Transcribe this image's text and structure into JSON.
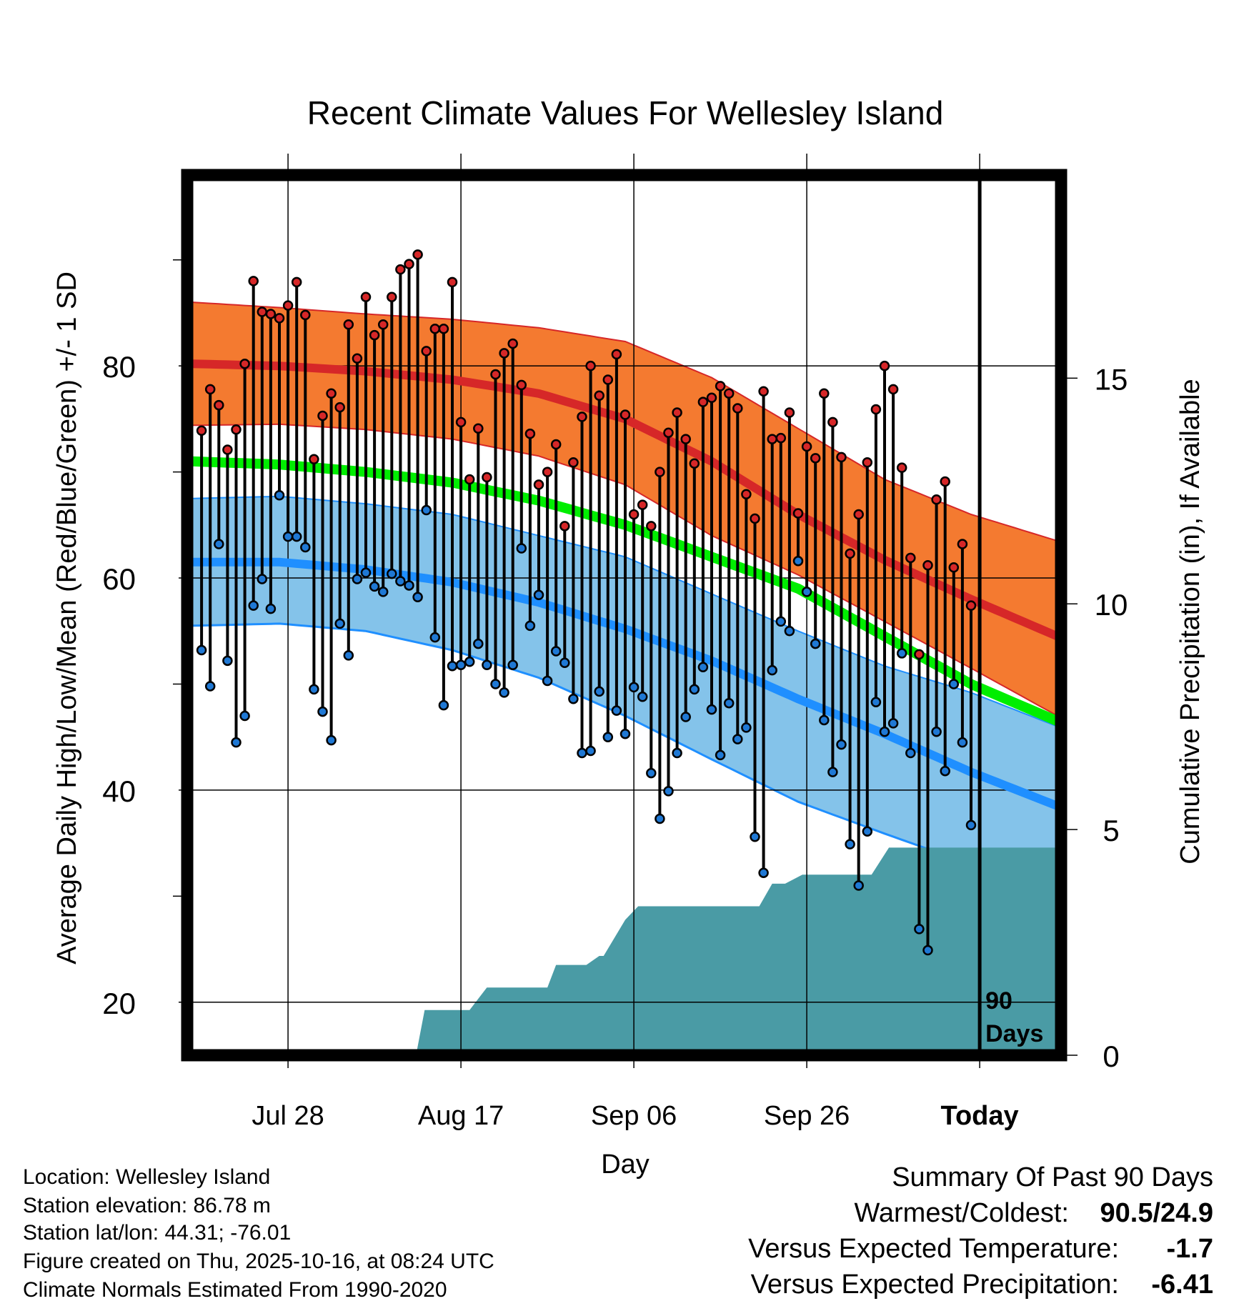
{
  "chart_data": {
    "type": "line",
    "title": "Recent Climate Values For Wellesley Island",
    "xlabel": "Day",
    "ylabel_left": "Average Daily High/Low/Mean (Red/Blue/Green) +/- 1 SD",
    "ylabel_right": "Cumulative Precipitation (in), If Available",
    "x_tick_labels": [
      "Jul 28",
      "Aug 17",
      "Sep 06",
      "Sep 26",
      "Today"
    ],
    "x_tick_days": [
      11,
      31,
      51,
      71,
      91
    ],
    "xlim": [
      0,
      100
    ],
    "ylim_temp": [
      15,
      98
    ],
    "y_ticks_temp": [
      20,
      40,
      60,
      80
    ],
    "ylim_precip": [
      0,
      19.5
    ],
    "y_ticks_precip": [
      0,
      5,
      10,
      15
    ],
    "days_label": "90 Days",
    "normals": {
      "days": [
        0,
        10,
        20,
        30,
        40,
        50,
        60,
        70,
        80,
        90,
        100
      ],
      "high_mean": [
        80.2,
        80.0,
        79.5,
        78.7,
        77.4,
        75.0,
        71.0,
        66.0,
        61.7,
        58.0,
        54.5
      ],
      "high_upper": [
        86.0,
        85.5,
        84.9,
        84.4,
        83.6,
        82.3,
        78.9,
        74.1,
        69.3,
        66.0,
        63.5
      ],
      "high_lower": [
        74.4,
        74.5,
        74.0,
        73.1,
        71.5,
        68.8,
        64.0,
        60.3,
        55.9,
        51.5,
        47.0
      ],
      "mean_temp": [
        71.0,
        70.7,
        70.0,
        69.0,
        67.3,
        65.0,
        62.0,
        59.0,
        54.5,
        50.0,
        46.5
      ],
      "low_mean": [
        61.5,
        61.5,
        60.8,
        59.6,
        57.7,
        55.2,
        52.2,
        48.6,
        45.3,
        41.7,
        38.5
      ],
      "low_upper": [
        67.5,
        67.7,
        67.0,
        66.0,
        64.0,
        62.0,
        58.5,
        55.0,
        51.7,
        49.2,
        46.0
      ],
      "low_lower": [
        55.5,
        55.7,
        55.0,
        53.2,
        50.6,
        47.0,
        42.9,
        38.9,
        35.9,
        33.0,
        30.5
      ]
    },
    "series": [
      {
        "name": "Daily High",
        "color": "#d62728",
        "values": [
          73.9,
          77.8,
          76.3,
          72.1,
          74.0,
          80.2,
          88.0,
          85.1,
          84.9,
          84.5,
          85.7,
          87.9,
          84.8,
          71.2,
          75.3,
          77.4,
          76.1,
          83.9,
          80.7,
          86.5,
          82.9,
          83.9,
          86.5,
          89.1,
          89.6,
          90.5,
          81.4,
          83.5,
          83.5,
          87.9,
          74.7,
          69.3,
          74.1,
          69.5,
          79.2,
          81.2,
          82.1,
          78.2,
          73.6,
          68.8,
          70.0,
          72.6,
          64.9,
          70.9,
          75.2,
          80.0,
          77.2,
          78.7,
          81.1,
          75.4,
          66.0,
          66.9,
          64.9,
          70.0,
          73.7,
          75.6,
          73.1,
          70.8,
          76.6,
          77.0,
          78.1,
          77.4,
          76.0,
          67.9,
          65.6,
          77.6,
          73.1,
          73.2,
          75.6,
          66.1,
          72.4,
          71.3,
          77.4,
          74.7,
          71.4,
          62.3,
          66.0,
          70.9,
          75.9,
          80.0,
          77.8,
          70.4,
          61.9,
          52.8,
          61.2,
          67.4,
          69.1,
          61.0,
          63.2,
          57.4
        ]
      },
      {
        "name": "Daily Low",
        "color": "#1f78d4",
        "values": [
          53.2,
          49.8,
          63.2,
          52.2,
          44.5,
          47.0,
          57.4,
          59.9,
          57.1,
          67.8,
          63.9,
          63.9,
          62.9,
          49.5,
          47.4,
          44.7,
          55.7,
          52.7,
          59.9,
          60.5,
          59.2,
          58.7,
          60.4,
          59.7,
          59.3,
          58.2,
          66.4,
          54.4,
          48.0,
          51.7,
          51.8,
          52.1,
          53.8,
          51.8,
          50.0,
          49.2,
          51.8,
          62.8,
          55.5,
          58.4,
          50.3,
          53.1,
          52.0,
          48.6,
          43.5,
          43.7,
          49.3,
          45.0,
          47.5,
          45.3,
          49.7,
          48.8,
          41.6,
          37.3,
          39.9,
          43.5,
          46.9,
          49.5,
          51.6,
          47.6,
          43.3,
          48.2,
          44.8,
          45.9,
          35.6,
          32.2,
          51.3,
          55.9,
          55.0,
          61.6,
          58.7,
          53.8,
          46.6,
          41.7,
          44.3,
          34.9,
          31.0,
          36.1,
          48.3,
          45.5,
          46.3,
          52.9,
          43.5,
          26.9,
          24.9,
          45.5,
          41.8,
          50.0,
          44.5,
          36.7
        ]
      },
      {
        "name": "Cumulative Precipitation",
        "color": "#4a9ba5",
        "days": [
          0,
          25.8,
          26.8,
          32.0,
          34.0,
          41.0,
          42.0,
          45.5,
          47.0,
          47.5,
          50.0,
          51.5,
          52.5,
          65.5,
          67.0,
          68.5,
          70.5,
          76.0,
          78.5,
          80.5,
          88.0,
          89.5,
          100.0
        ],
        "values": [
          0,
          0,
          1.0,
          1.0,
          1.5,
          1.5,
          2.0,
          2.0,
          2.2,
          2.2,
          3.0,
          3.3,
          3.3,
          3.3,
          3.8,
          3.8,
          4.0,
          4.0,
          4.0,
          4.6,
          4.6,
          4.6,
          4.6
        ]
      }
    ]
  },
  "info": {
    "location": "Location: Wellesley Island",
    "elevation": "Station elevation: 86.78 m",
    "latlon": "Station lat/lon: 44.31; -76.01",
    "created": "Figure created on Thu, 2025-10-16, at 08:24 UTC",
    "normals": "Climate Normals Estimated From 1990-2020"
  },
  "summary": {
    "title": "Summary Of Past 90 Days",
    "warmest_coldest_label": "Warmest/Coldest:",
    "warmest_coldest_value": "90.5/24.9",
    "temp_label": "Versus Expected Temperature:",
    "temp_value": "-1.7",
    "temp_color": "#1f8fe0",
    "precip_label": "Versus Expected Precipitation:",
    "precip_value": "-6.41",
    "precip_color": "#a0522d"
  },
  "colors": {
    "high_band": "#f47a30",
    "high_line": "#d62728",
    "mean_line": "#00ee00",
    "low_band": "#84c3ea",
    "low_line": "#1f8fff",
    "precip": "#4a9ba5"
  }
}
